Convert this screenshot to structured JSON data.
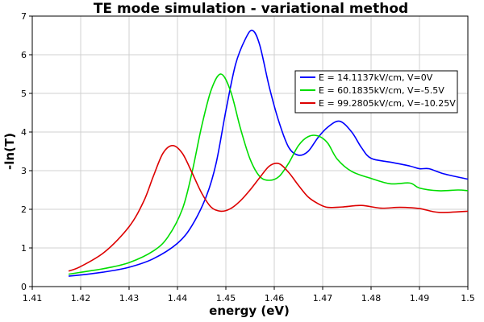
{
  "chart_data": {
    "type": "line",
    "title": "TE mode simulation - variational method",
    "xlabel": "energy (eV)",
    "ylabel": "-ln(T)",
    "xlim": [
      1.41,
      1.5
    ],
    "ylim": [
      0,
      7
    ],
    "xticks": [
      "1.41",
      "1.42",
      "1.43",
      "1.44",
      "1.45",
      "1.46",
      "1.47",
      "1.48",
      "1.49",
      "1.5"
    ],
    "yticks": [
      "0",
      "1",
      "2",
      "3",
      "4",
      "5",
      "6",
      "7"
    ],
    "grid": true,
    "legend_position": "top-right",
    "series": [
      {
        "name": "E = 14.1137kV/cm, V=0V",
        "color": "#0000ff",
        "x": [
          1.4175,
          1.42,
          1.425,
          1.43,
          1.435,
          1.44,
          1.443,
          1.446,
          1.448,
          1.45,
          1.452,
          1.454,
          1.4555,
          1.457,
          1.459,
          1.461,
          1.463,
          1.465,
          1.467,
          1.469,
          1.471,
          1.4735,
          1.476,
          1.478,
          1.48,
          1.484,
          1.488,
          1.49,
          1.492,
          1.495,
          1.5
        ],
        "y": [
          0.27,
          0.3,
          0.38,
          0.5,
          0.72,
          1.12,
          1.58,
          2.35,
          3.2,
          4.55,
          5.75,
          6.4,
          6.63,
          6.25,
          5.15,
          4.25,
          3.6,
          3.4,
          3.5,
          3.85,
          4.12,
          4.28,
          4.0,
          3.6,
          3.32,
          3.22,
          3.12,
          3.05,
          3.05,
          2.92,
          2.78
        ]
      },
      {
        "name": "E = 60.1835kV/cm, V=-5.5V",
        "color": "#00dd00",
        "x": [
          1.4175,
          1.42,
          1.425,
          1.43,
          1.435,
          1.438,
          1.441,
          1.443,
          1.445,
          1.447,
          1.449,
          1.451,
          1.453,
          1.455,
          1.457,
          1.459,
          1.461,
          1.463,
          1.465,
          1.467,
          1.469,
          1.471,
          1.473,
          1.476,
          1.48,
          1.484,
          1.488,
          1.49,
          1.494,
          1.498,
          1.5
        ],
        "y": [
          0.32,
          0.37,
          0.47,
          0.62,
          0.92,
          1.28,
          2.0,
          2.95,
          4.15,
          5.1,
          5.5,
          5.05,
          4.1,
          3.3,
          2.85,
          2.75,
          2.85,
          3.2,
          3.65,
          3.88,
          3.9,
          3.72,
          3.3,
          2.98,
          2.8,
          2.66,
          2.68,
          2.55,
          2.48,
          2.5,
          2.48
        ]
      },
      {
        "name": "E = 99.2805kV/cm, V=-10.25V",
        "color": "#dd0000",
        "x": [
          1.4175,
          1.42,
          1.425,
          1.43,
          1.433,
          1.435,
          1.437,
          1.439,
          1.441,
          1.443,
          1.445,
          1.447,
          1.449,
          1.451,
          1.453,
          1.455,
          1.457,
          1.459,
          1.461,
          1.463,
          1.465,
          1.467,
          1.469,
          1.471,
          1.474,
          1.478,
          1.482,
          1.486,
          1.49,
          1.494,
          1.5
        ],
        "y": [
          0.4,
          0.52,
          0.9,
          1.55,
          2.2,
          2.85,
          3.45,
          3.65,
          3.45,
          2.95,
          2.42,
          2.05,
          1.95,
          2.02,
          2.22,
          2.5,
          2.82,
          3.12,
          3.18,
          2.95,
          2.62,
          2.32,
          2.15,
          2.05,
          2.06,
          2.1,
          2.03,
          2.05,
          2.02,
          1.92,
          1.95
        ]
      }
    ]
  }
}
